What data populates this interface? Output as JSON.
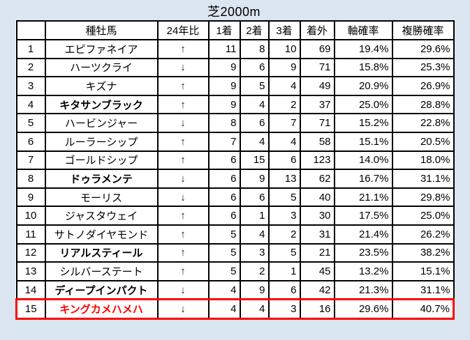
{
  "title": "芝2000m",
  "icons": {
    "up": "↑",
    "down": "↓"
  },
  "colors": {
    "page_background": "#dce6f1",
    "trend_up_bg": "#00ffff",
    "trend_down_bg": "#d9d9d9",
    "highlight_orange": "#ffc000",
    "highlight_green": "#92d050",
    "highlight_yellow": "#ffff00",
    "selected_row_border": "#ff0000",
    "selected_row_text": "#ff0000",
    "grid_border": "#000000"
  },
  "table": {
    "headers": [
      "",
      "種牡馬",
      "24年比",
      "1着",
      "2着",
      "3着",
      "着外",
      "軸確率",
      "複勝確率"
    ],
    "rows": [
      {
        "rank": "1",
        "sire": "エピファネイア",
        "trend": "up",
        "win": "11",
        "second": "8",
        "third": "10",
        "out": "69",
        "axis_rate": "19.4%",
        "fukusho_rate": "29.6%"
      },
      {
        "rank": "2",
        "sire": "ハーツクライ",
        "trend": "down",
        "win": "9",
        "second": "6",
        "third": "9",
        "out": "71",
        "axis_rate": "15.8%",
        "fukusho_rate": "25.3%"
      },
      {
        "rank": "3",
        "sire": "キズナ",
        "trend": "up",
        "win": "9",
        "second": "5",
        "third": "4",
        "out": "49",
        "axis_rate": "20.9%",
        "fukusho_rate": "26.9%"
      },
      {
        "rank": "4",
        "sire": "キタサンブラック",
        "trend": "up",
        "win": "9",
        "second": "4",
        "third": "2",
        "out": "37",
        "axis_rate": "25.0%",
        "fukusho_rate": "28.8%",
        "sire_hl": "orange",
        "axis_hl": "orange"
      },
      {
        "rank": "5",
        "sire": "ハービンジャー",
        "trend": "down",
        "win": "8",
        "second": "6",
        "third": "7",
        "out": "71",
        "axis_rate": "15.2%",
        "fukusho_rate": "22.8%"
      },
      {
        "rank": "6",
        "sire": "ルーラーシップ",
        "trend": "up",
        "win": "7",
        "second": "4",
        "third": "4",
        "out": "58",
        "axis_rate": "15.1%",
        "fukusho_rate": "20.5%"
      },
      {
        "rank": "7",
        "sire": "ゴールドシップ",
        "trend": "up",
        "win": "6",
        "second": "15",
        "third": "6",
        "out": "123",
        "axis_rate": "14.0%",
        "fukusho_rate": "18.0%"
      },
      {
        "rank": "8",
        "sire": "ドゥラメンテ",
        "trend": "down",
        "win": "6",
        "second": "9",
        "third": "13",
        "out": "62",
        "axis_rate": "16.7%",
        "fukusho_rate": "31.1%",
        "sire_hl": "green",
        "fukusho_hl": "green"
      },
      {
        "rank": "9",
        "sire": "モーリス",
        "trend": "down",
        "win": "6",
        "second": "6",
        "third": "5",
        "out": "40",
        "axis_rate": "21.1%",
        "fukusho_rate": "29.8%"
      },
      {
        "rank": "10",
        "sire": "ジャスタウェイ",
        "trend": "up",
        "win": "6",
        "second": "1",
        "third": "3",
        "out": "30",
        "axis_rate": "17.5%",
        "fukusho_rate": "25.0%"
      },
      {
        "rank": "11",
        "sire": "サトノダイヤモンド",
        "trend": "up",
        "win": "5",
        "second": "4",
        "third": "2",
        "out": "31",
        "axis_rate": "21.4%",
        "fukusho_rate": "26.2%"
      },
      {
        "rank": "12",
        "sire": "リアルスティール",
        "trend": "up",
        "win": "5",
        "second": "3",
        "third": "5",
        "out": "21",
        "axis_rate": "23.5%",
        "fukusho_rate": "38.2%",
        "sire_hl": "green",
        "fukusho_hl": "green"
      },
      {
        "rank": "13",
        "sire": "シルバーステート",
        "trend": "up",
        "win": "5",
        "second": "2",
        "third": "1",
        "out": "45",
        "axis_rate": "13.2%",
        "fukusho_rate": "15.1%"
      },
      {
        "rank": "14",
        "sire": "ディープインパクト",
        "trend": "down",
        "win": "4",
        "second": "9",
        "third": "6",
        "out": "42",
        "axis_rate": "21.3%",
        "fukusho_rate": "31.1%",
        "sire_hl": "green",
        "fukusho_hl": "green"
      },
      {
        "rank": "15",
        "sire": "キングカメハメハ",
        "trend": "down",
        "win": "4",
        "second": "4",
        "third": "3",
        "out": "16",
        "axis_rate": "29.6%",
        "fukusho_rate": "40.7%",
        "sire_hl": "yellow",
        "axis_hl": "orange",
        "fukusho_hl": "green",
        "selected": true
      }
    ]
  }
}
